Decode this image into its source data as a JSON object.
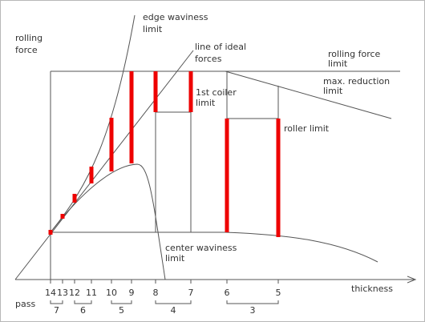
{
  "axes": {
    "y_label": [
      "rolling",
      "force"
    ],
    "x_label": "thickness",
    "pass_label": "pass"
  },
  "curves": {
    "edge_waviness": [
      "edge waviness",
      "limit"
    ],
    "ideal_forces": [
      "line of ideal",
      "forces"
    ],
    "rolling_force_limit": [
      "rolling force",
      "limit"
    ],
    "max_reduction": [
      "max. reduction",
      "limit"
    ],
    "coiler": [
      "1st coiler",
      "limit"
    ],
    "roller": "roller limit",
    "center_waviness": [
      "center waviness",
      "limit"
    ]
  },
  "stands": [
    "14",
    "13",
    "12",
    "11",
    "10",
    "9",
    "8",
    "7",
    "6",
    "5"
  ],
  "passes": [
    "7",
    "6",
    "5",
    "4",
    "3"
  ]
}
